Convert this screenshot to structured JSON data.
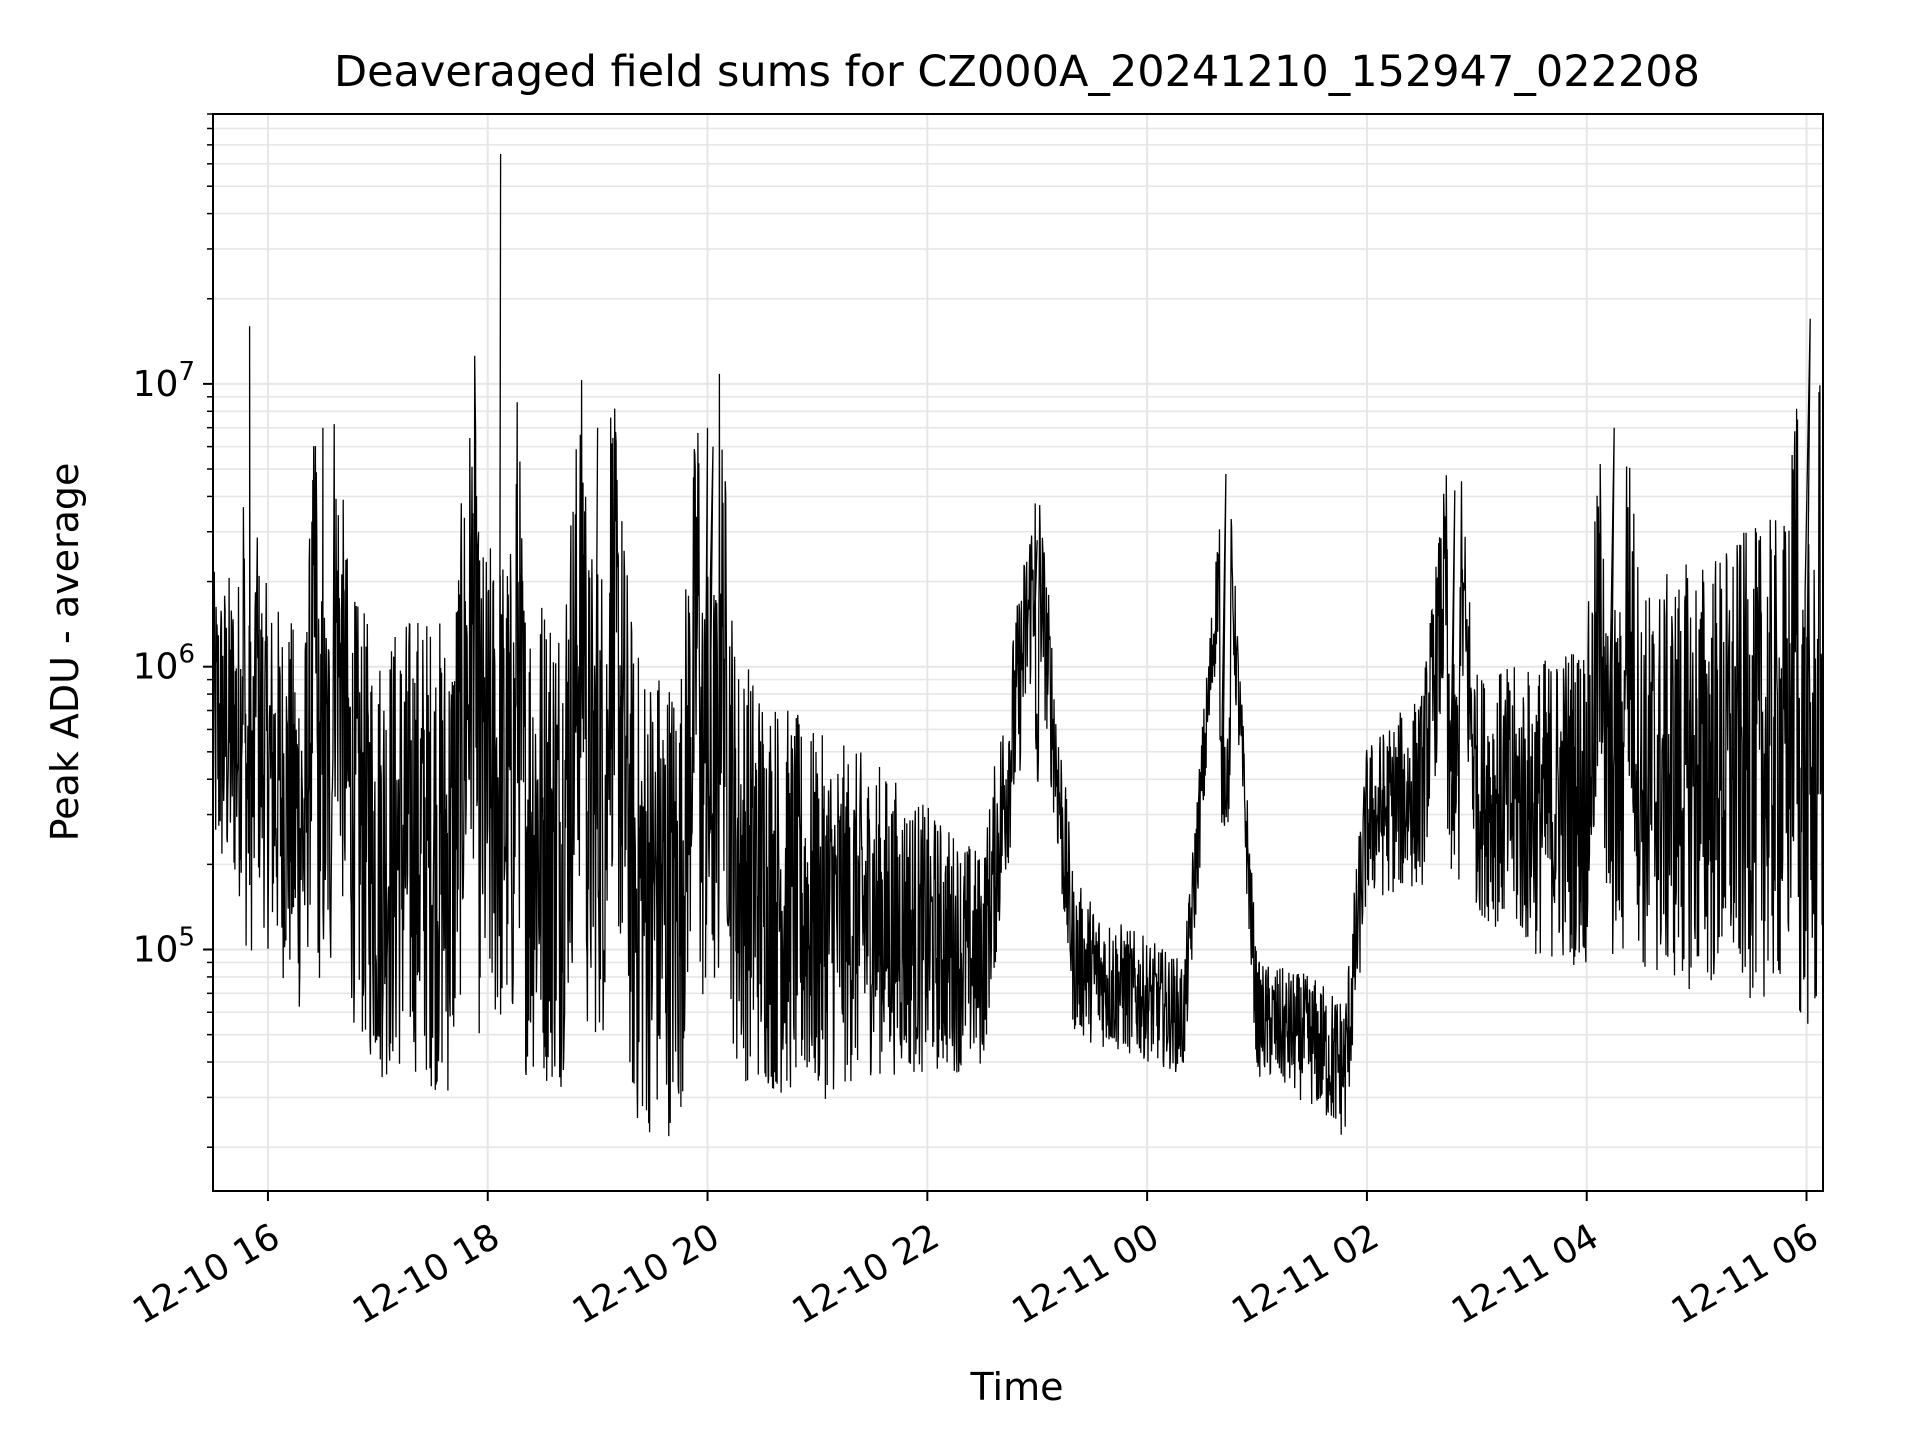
{
  "chart_data": {
    "type": "line",
    "title": "Deaveraged field sums for CZ000A_20241210_152947_022208",
    "xlabel": "Time",
    "ylabel": "Peak ADU - average",
    "yscale": "log",
    "grid": true,
    "line_color": "#000000",
    "grid_color": "#e6e6e6",
    "xlim": [
      "2024-12-10 15:30",
      "2024-12-11 06:09"
    ],
    "ylim": [
      14000,
      90000000
    ],
    "x_ticks": [
      {
        "value": "2024-12-10 16:00",
        "label": "12-10 16"
      },
      {
        "value": "2024-12-10 18:00",
        "label": "12-10 18"
      },
      {
        "value": "2024-12-10 20:00",
        "label": "12-10 20"
      },
      {
        "value": "2024-12-10 22:00",
        "label": "12-10 22"
      },
      {
        "value": "2024-12-11 00:00",
        "label": "12-11 00"
      },
      {
        "value": "2024-12-11 02:00",
        "label": "12-11 02"
      },
      {
        "value": "2024-12-11 04:00",
        "label": "12-11 04"
      },
      {
        "value": "2024-12-11 06:00",
        "label": "12-11 06"
      }
    ],
    "y_ticks": [
      {
        "value": 100000,
        "base": "10",
        "exp": "5"
      },
      {
        "value": 1000000,
        "base": "10",
        "exp": "6"
      },
      {
        "value": 10000000,
        "base": "10",
        "exp": "7"
      }
    ],
    "series": [
      {
        "x": [
          "2024-12-10 15:30",
          "2024-12-10 15:45",
          "2024-12-10 15:50",
          "2024-12-10 15:55",
          "2024-12-10 16:00",
          "2024-12-10 16:10",
          "2024-12-10 16:20",
          "2024-12-10 16:30",
          "2024-12-10 16:45",
          "2024-12-10 17:00",
          "2024-12-10 17:20",
          "2024-12-10 17:40",
          "2024-12-10 17:55",
          "2024-12-10 18:07",
          "2024-12-10 18:20",
          "2024-12-10 18:40",
          "2024-12-10 19:00",
          "2024-12-10 19:20",
          "2024-12-10 19:45",
          "2024-12-10 20:00",
          "2024-12-10 20:03",
          "2024-12-10 20:15",
          "2024-12-10 20:40",
          "2024-12-10 21:00",
          "2024-12-10 21:30",
          "2024-12-10 22:00",
          "2024-12-10 22:30",
          "2024-12-10 23:00",
          "2024-12-10 23:20",
          "2024-12-10 23:40",
          "2024-12-11 00:00",
          "2024-12-11 00:20",
          "2024-12-11 00:43",
          "2024-12-11 01:00",
          "2024-12-11 01:30",
          "2024-12-11 01:48",
          "2024-12-11 02:00",
          "2024-12-11 02:30",
          "2024-12-11 02:48",
          "2024-12-11 03:00",
          "2024-12-11 03:30",
          "2024-12-11 04:00",
          "2024-12-11 04:15",
          "2024-12-11 04:30",
          "2024-12-11 05:00",
          "2024-12-11 05:30",
          "2024-12-11 05:50",
          "2024-12-11 06:02",
          "2024-12-11 06:09"
        ],
        "y": [
          700000,
          650000,
          16000000,
          700000,
          500000,
          400000,
          300000,
          7000000,
          400000,
          250000,
          300000,
          250000,
          3000000,
          65000000,
          350000,
          300000,
          7000000,
          200000,
          180000,
          7000000,
          6000000,
          250000,
          180000,
          150000,
          150000,
          120000,
          100000,
          2800000,
          100000,
          80000,
          70000,
          60000,
          4800000,
          60000,
          50000,
          40000,
          300000,
          400000,
          4200000,
          400000,
          350000,
          400000,
          7000000,
          450000,
          500000,
          550000,
          600000,
          17000000,
          750000
        ]
      }
    ]
  }
}
